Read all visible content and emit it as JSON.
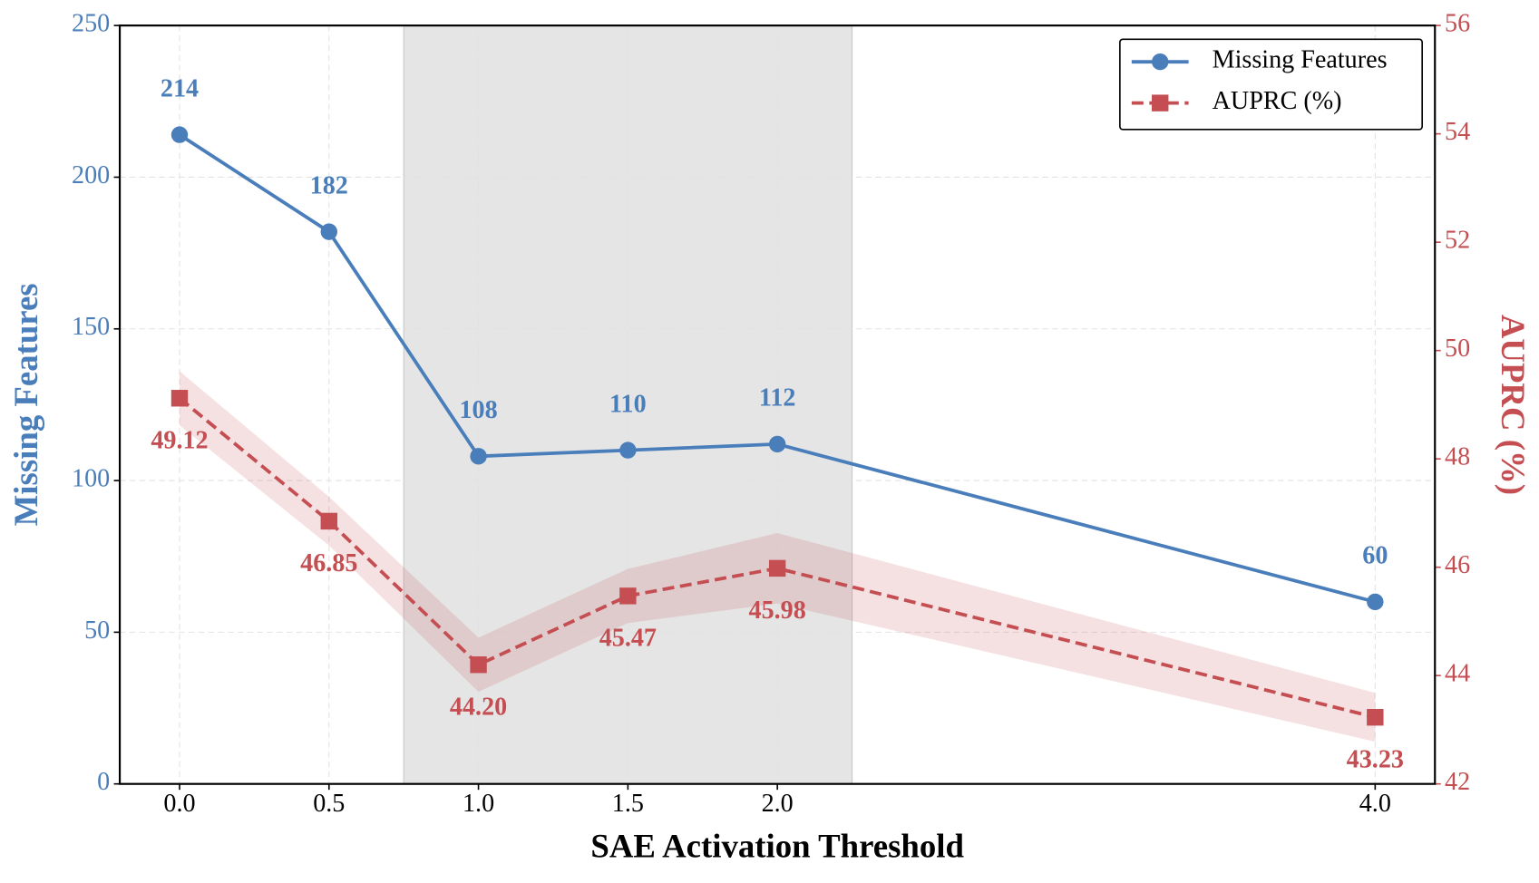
{
  "chart_data": {
    "type": "line",
    "x_label": "SAE Activation Threshold",
    "y_label": "Missing Features",
    "y2_label": "AUPRC (%)",
    "x": [
      0,
      0.5,
      1,
      1.5,
      2,
      4
    ],
    "xlim": [
      -0.2,
      4.2
    ],
    "xticks": [
      {
        "value": 0,
        "label": "0.0"
      },
      {
        "value": 0.5,
        "label": "0.5"
      },
      {
        "value": 1,
        "label": "1.0"
      },
      {
        "value": 1.5,
        "label": "1.5"
      },
      {
        "value": 2,
        "label": "2.0"
      },
      {
        "value": 4,
        "label": "4.0"
      }
    ],
    "ylim": [
      0,
      250
    ],
    "yticks": [
      0,
      50,
      100,
      150,
      200,
      250
    ],
    "y2lim": [
      42,
      56
    ],
    "y2ticks": [
      42,
      44,
      46,
      48,
      50,
      52,
      54,
      56
    ],
    "grid": true,
    "legend": "upper right",
    "highlight_span": [
      0.75,
      2.25
    ],
    "series": [
      {
        "name": "Missing Features",
        "color": "#4a7ebb",
        "values": [
          214,
          182,
          108,
          110,
          112,
          60
        ]
      },
      {
        "name": "AUPRC (%)",
        "color": "#c44e52",
        "axis": "y2",
        "values": [
          49.12,
          46.85,
          44.2,
          45.47,
          45.98,
          43.23
        ],
        "value_labels": [
          "49.12",
          "46.85",
          "44.20",
          "45.47",
          "45.98",
          "43.23"
        ],
        "band": [
          0.5,
          0.45,
          0.5,
          0.5,
          0.65,
          0.45
        ]
      }
    ]
  }
}
